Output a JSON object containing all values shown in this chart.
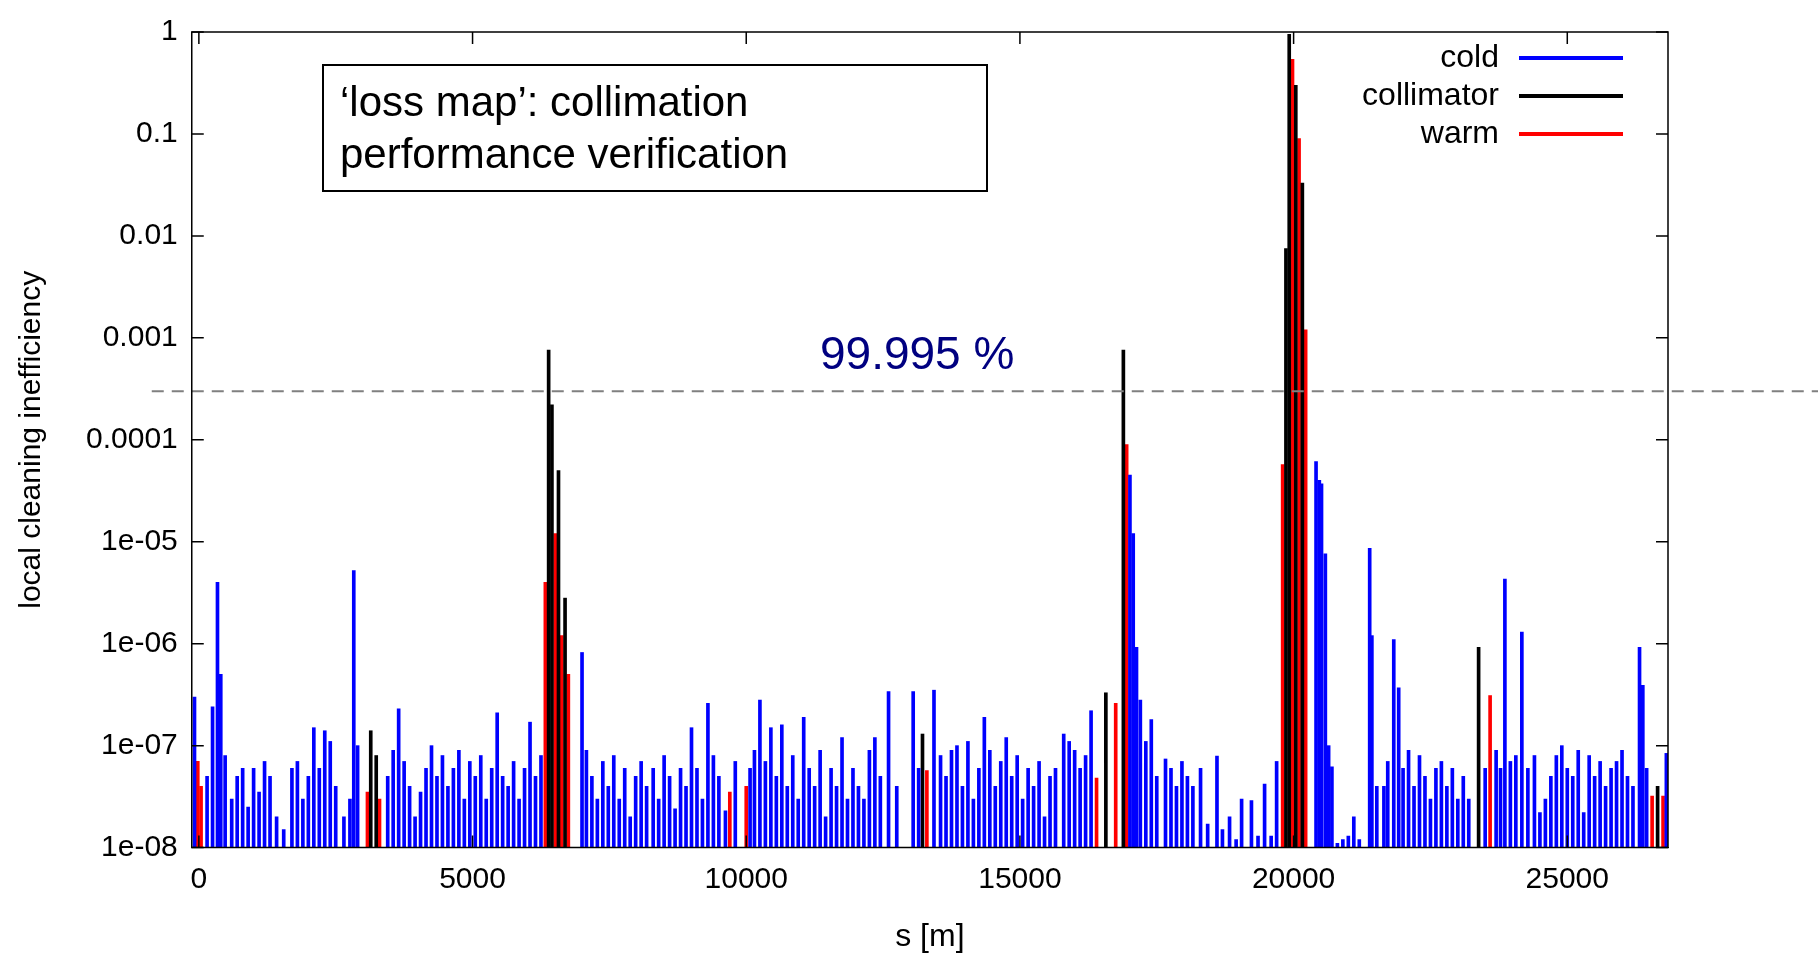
{
  "chart_data": {
    "type": "bar",
    "xlabel": "s [m]",
    "ylabel": "local cleaning inefficiency",
    "log": "y",
    "grid": false,
    "legend": "top right",
    "xlim": [
      -130,
      26840
    ],
    "xticks": [
      0,
      5000,
      10000,
      15000,
      20000,
      25000
    ],
    "ylim": [
      1e-08,
      1
    ],
    "yticks": [
      1,
      0.1,
      0.01,
      0.001,
      0.0001,
      {
        "value": 1e-05,
        "label": "1e-05"
      },
      {
        "value": 1e-06,
        "label": "1e-06"
      },
      {
        "value": 1e-07,
        "label": "1e-07"
      },
      {
        "value": 1e-08,
        "label": "1e-08"
      }
    ],
    "ref_lines": [
      {
        "axis": "y",
        "value": 0.0003,
        "color": "#808080",
        "line_style": "dashed"
      }
    ],
    "annotations": [
      "‘loss map’: collimation performance verification",
      "99.995 %"
    ],
    "series": [
      {
        "name": "cold",
        "color": "#0000ff",
        "x": [
          -80,
          150,
          250,
          340,
          400,
          480,
          600,
          700,
          800,
          900,
          1000,
          1100,
          1200,
          1300,
          1420,
          1550,
          1700,
          1800,
          1900,
          2000,
          2100,
          2200,
          2300,
          2400,
          2500,
          2650,
          2760,
          2830,
          2900,
          3450,
          3550,
          3650,
          3750,
          3850,
          3950,
          4050,
          4150,
          4250,
          4350,
          4450,
          4550,
          4650,
          4750,
          4850,
          4950,
          5050,
          5150,
          5250,
          5350,
          5450,
          5550,
          5650,
          5750,
          5850,
          5950,
          6050,
          6150,
          6250,
          7000,
          7080,
          7180,
          7280,
          7380,
          7480,
          7580,
          7680,
          7780,
          7880,
          7980,
          8080,
          8180,
          8300,
          8400,
          8500,
          8600,
          8700,
          8800,
          8900,
          9000,
          9100,
          9200,
          9300,
          9400,
          9500,
          9620,
          9800,
          10070,
          10150,
          10250,
          10350,
          10450,
          10550,
          10650,
          10750,
          10850,
          10950,
          11050,
          11150,
          11250,
          11350,
          11450,
          11550,
          11650,
          11750,
          11850,
          11950,
          12050,
          12150,
          12250,
          12350,
          12450,
          12600,
          12750,
          13050,
          13150,
          13430,
          13550,
          13650,
          13750,
          13850,
          13950,
          14050,
          14150,
          14250,
          14350,
          14450,
          14550,
          14650,
          14750,
          14850,
          14950,
          15050,
          15150,
          15250,
          15350,
          15450,
          15550,
          15650,
          15800,
          15900,
          16000,
          16100,
          16200,
          16300,
          17010,
          17070,
          17130,
          17200,
          17300,
          17400,
          17500,
          17660,
          17760,
          17860,
          17960,
          18060,
          18160,
          18300,
          18430,
          18600,
          18700,
          18830,
          18950,
          19050,
          19230,
          19350,
          19470,
          19590,
          19690,
          20410,
          20470,
          20510,
          20580,
          20640,
          20700,
          20800,
          20900,
          21000,
          21100,
          21200,
          21390,
          21430,
          21520,
          21650,
          21720,
          21830,
          21920,
          22000,
          22100,
          22200,
          22300,
          22400,
          22500,
          22600,
          22700,
          22800,
          22900,
          23000,
          23100,
          23200,
          23500,
          23700,
          23780,
          23860,
          23960,
          24060,
          24170,
          24280,
          24400,
          24500,
          24600,
          24700,
          24800,
          24900,
          25000,
          25100,
          25200,
          25300,
          25400,
          25500,
          25600,
          25700,
          25800,
          25900,
          26000,
          26100,
          26200,
          26320,
          26380,
          26450,
          26810
        ],
        "values": [
          3e-07,
          5e-08,
          2.4e-07,
          4e-06,
          5e-07,
          8e-08,
          3e-08,
          5e-08,
          6e-08,
          2.5e-08,
          6e-08,
          3.5e-08,
          7e-08,
          5e-08,
          2e-08,
          1.5e-08,
          6e-08,
          7e-08,
          3e-08,
          5e-08,
          1.5e-07,
          6e-08,
          1.4e-07,
          1.1e-07,
          4e-08,
          2e-08,
          3e-08,
          5.2e-06,
          1e-07,
          5e-08,
          9e-08,
          2.3e-07,
          7e-08,
          4e-08,
          2e-08,
          3.5e-08,
          6e-08,
          1e-07,
          5e-08,
          8e-08,
          4e-08,
          6e-08,
          9e-08,
          3e-08,
          7e-08,
          5e-08,
          8e-08,
          3e-08,
          6e-08,
          2.1e-07,
          5e-08,
          4e-08,
          7e-08,
          3e-08,
          6e-08,
          1.7e-07,
          5e-08,
          8e-08,
          8.2e-07,
          9e-08,
          5e-08,
          3e-08,
          7e-08,
          4e-08,
          8e-08,
          3e-08,
          6e-08,
          2e-08,
          5e-08,
          7e-08,
          4e-08,
          6e-08,
          3e-08,
          8e-08,
          5e-08,
          2.4e-08,
          6e-08,
          4e-08,
          1.5e-07,
          6e-08,
          3e-08,
          2.6e-07,
          8e-08,
          5e-08,
          2.3e-08,
          7e-08,
          6e-08,
          9e-08,
          2.8e-07,
          7e-08,
          1.5e-07,
          5e-08,
          1.6e-07,
          4e-08,
          8e-08,
          3e-08,
          1.9e-07,
          6e-08,
          4e-08,
          9e-08,
          2e-08,
          6e-08,
          4e-08,
          1.2e-07,
          3e-08,
          6e-08,
          4e-08,
          3e-08,
          9e-08,
          1.2e-07,
          5e-08,
          3.4e-07,
          4e-08,
          3.4e-07,
          6e-08,
          3.5e-07,
          8e-08,
          5e-08,
          9e-08,
          1e-07,
          4e-08,
          1.1e-07,
          3e-08,
          6e-08,
          1.9e-07,
          9e-08,
          4e-08,
          7e-08,
          1.2e-07,
          5e-08,
          8e-08,
          3e-08,
          6e-08,
          4e-08,
          7e-08,
          2e-08,
          5e-08,
          6e-08,
          1.3e-07,
          1.1e-07,
          9e-08,
          6e-08,
          8e-08,
          2.2e-07,
          4.5e-05,
          1.2e-05,
          9.2e-07,
          2.8e-07,
          1.1e-07,
          1.8e-07,
          5e-08,
          7.4e-08,
          6e-08,
          4e-08,
          7e-08,
          5e-08,
          4e-08,
          6e-08,
          1.7e-08,
          7.9e-08,
          1.5e-08,
          2e-08,
          1.2e-08,
          3e-08,
          2.9e-08,
          1.3e-08,
          4.2e-08,
          1.3e-08,
          7e-08,
          6.1e-05,
          4e-05,
          3.7e-05,
          7.6e-06,
          1e-07,
          6.2e-08,
          1.1e-08,
          1.2e-08,
          1.3e-08,
          2e-08,
          1.2e-08,
          8.6e-06,
          1.2e-06,
          4e-08,
          4e-08,
          7e-08,
          1.1e-06,
          3.7e-07,
          6e-08,
          9e-08,
          4e-08,
          8e-08,
          5e-08,
          3e-08,
          6e-08,
          7e-08,
          4e-08,
          6e-08,
          3e-08,
          5e-08,
          3e-08,
          6e-08,
          9e-08,
          6e-08,
          4.3e-06,
          7e-08,
          8e-08,
          1.3e-06,
          6e-08,
          8e-08,
          2.2e-08,
          3e-08,
          5e-08,
          8e-08,
          1e-07,
          6e-08,
          5e-08,
          9e-08,
          2.2e-08,
          8e-08,
          5e-08,
          7e-08,
          4e-08,
          6e-08,
          7e-08,
          9e-08,
          5e-08,
          4e-08,
          9.2e-07,
          3.9e-07,
          6e-08,
          8.4e-08
        ]
      },
      {
        "name": "collimator",
        "color": "#000000",
        "x": [
          3140,
          3240,
          6390,
          6450,
          6570,
          6690,
          13220,
          16570,
          16890,
          19860,
          19920,
          20040,
          20160,
          23380,
          26650
        ],
        "values": [
          1.4e-07,
          8e-08,
          0.00076,
          0.00022,
          5e-05,
          2.8e-06,
          1.3e-07,
          3.3e-07,
          0.00076,
          0.0075,
          0.95,
          0.3,
          0.033,
          9.2e-07,
          4e-08
        ]
      },
      {
        "name": "warm",
        "color": "#ff0000",
        "x": [
          -20,
          40,
          3080,
          3300,
          6330,
          6510,
          6630,
          6750,
          9700,
          10000,
          13300,
          16400,
          16750,
          16950,
          19800,
          19980,
          20100,
          20220,
          23590,
          26550,
          26750
        ],
        "values": [
          7e-08,
          4e-08,
          3.5e-08,
          3e-08,
          4e-06,
          1.2e-05,
          1.2e-06,
          5e-07,
          3.5e-08,
          4e-08,
          5.7e-08,
          4.8e-08,
          2.6e-07,
          9e-05,
          5.7e-05,
          0.54,
          0.09,
          0.0012,
          3.1e-07,
          3.2e-08,
          3.2e-08
        ]
      }
    ]
  }
}
